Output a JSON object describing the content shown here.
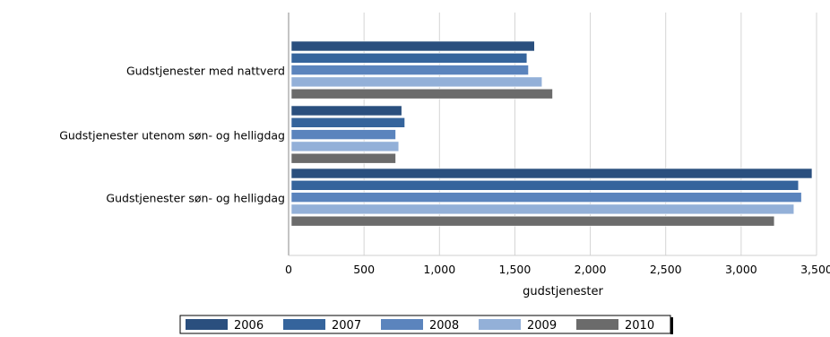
{
  "chart_data": {
    "type": "bar",
    "orientation": "horizontal",
    "title": "",
    "xlabel": "gudstjenester",
    "ylabel": "",
    "xlim": [
      0,
      3500
    ],
    "grid": true,
    "legend_placement": "bottom",
    "categories": [
      "Gudstjenester med nattverd",
      "Gudstjenester utenom søn- og helligdag",
      "Gudstjenester søn- og helligdag"
    ],
    "x_ticks": [
      "0",
      "500",
      "1,000",
      "1,500",
      "2,000",
      "2,500",
      "3,000",
      "3,500"
    ],
    "series": [
      {
        "name": "2006",
        "color": "#2a4f7e",
        "values": [
          1630,
          750,
          3470
        ]
      },
      {
        "name": "2007",
        "color": "#35649c",
        "values": [
          1580,
          770,
          3380
        ]
      },
      {
        "name": "2008",
        "color": "#5b84bd",
        "values": [
          1590,
          710,
          3400
        ]
      },
      {
        "name": "2009",
        "color": "#93b0d8",
        "values": [
          1680,
          730,
          3350
        ]
      },
      {
        "name": "2010",
        "color": "#6b6b6b",
        "values": [
          1750,
          710,
          3220
        ]
      }
    ]
  }
}
